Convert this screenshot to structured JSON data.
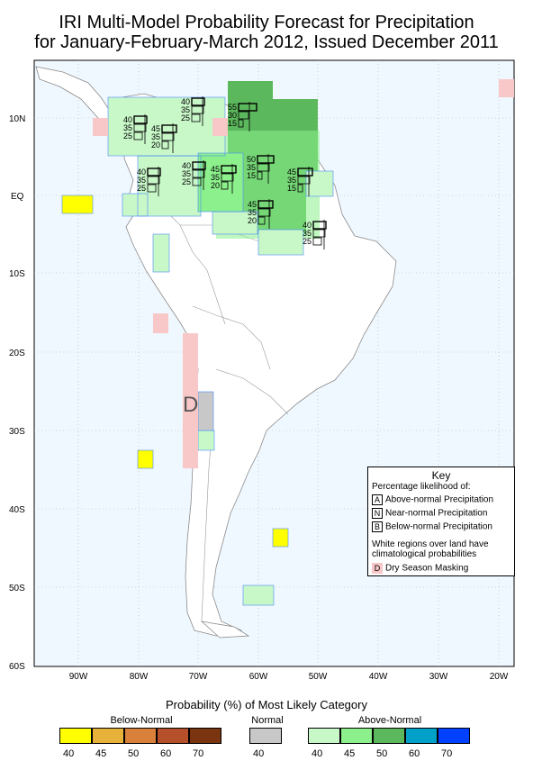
{
  "title_line1": "IRI Multi-Model Probability Forecast for Precipitation",
  "title_line2": "for January-February-March 2012, Issued December 2011",
  "lat_labels": [
    "10N",
    "EQ",
    "10S",
    "20S",
    "30S",
    "40S",
    "50S",
    "60S"
  ],
  "lon_labels": [
    "90W",
    "80W",
    "70W",
    "60W",
    "50W",
    "40W",
    "30W",
    "20W"
  ],
  "dry_season_marker": "D",
  "forecast_markers": [
    {
      "region": "caribbean-north",
      "a": "40",
      "n": "35",
      "b": "25"
    },
    {
      "region": "central-america",
      "a": "40",
      "n": "35",
      "b": "25"
    },
    {
      "region": "colombia-north",
      "a": "45",
      "n": "35",
      "b": "20"
    },
    {
      "region": "venezuela",
      "a": "55",
      "n": "30",
      "b": "15"
    },
    {
      "region": "colombia-west",
      "a": "40",
      "n": "35",
      "b": "25"
    },
    {
      "region": "colombia-east",
      "a": "40",
      "n": "35",
      "b": "25"
    },
    {
      "region": "amazon-west",
      "a": "45",
      "n": "35",
      "b": "20"
    },
    {
      "region": "amazon-north",
      "a": "50",
      "n": "35",
      "b": "15"
    },
    {
      "region": "guianas",
      "a": "45",
      "n": "35",
      "b": "15"
    },
    {
      "region": "amazon-central",
      "a": "45",
      "n": "35",
      "b": "20"
    },
    {
      "region": "brazil-northeast",
      "a": "40",
      "n": "35",
      "b": "25"
    }
  ],
  "key": {
    "title": "Key",
    "subtitle": "Percentage likelihood of:",
    "rows": [
      {
        "letter": "A",
        "text": "Above-normal Precipitation"
      },
      {
        "letter": "N",
        "text": "Near-normal Precipitation"
      },
      {
        "letter": "B",
        "text": "Below-normal Precipitation"
      }
    ],
    "note_line1": "White regions over land have",
    "note_line2": "climatological probabilities",
    "mask_letter": "D",
    "mask_text": "Dry Season Masking"
  },
  "legend": {
    "title": "Probability (%) of Most Likely Category",
    "below_label": "Below-Normal",
    "normal_label": "Normal",
    "above_label": "Above-Normal",
    "below_ticks": [
      "40",
      "45",
      "50",
      "60",
      "70"
    ],
    "normal_ticks": [
      "40"
    ],
    "above_ticks": [
      "40",
      "45",
      "50",
      "60",
      "70"
    ],
    "below_colors": [
      "#ffff00",
      "#e8b23a",
      "#d9813a",
      "#b5502a",
      "#7a3410"
    ],
    "normal_colors": [
      "#c8c8c8"
    ],
    "above_colors": [
      "#c8f7c8",
      "#8cf08c",
      "#5cb85c",
      "#00a0c8",
      "#0040ff"
    ]
  },
  "colors": {
    "ocean": "#f0f8ff",
    "dry_mask": "#f8c8c8"
  }
}
